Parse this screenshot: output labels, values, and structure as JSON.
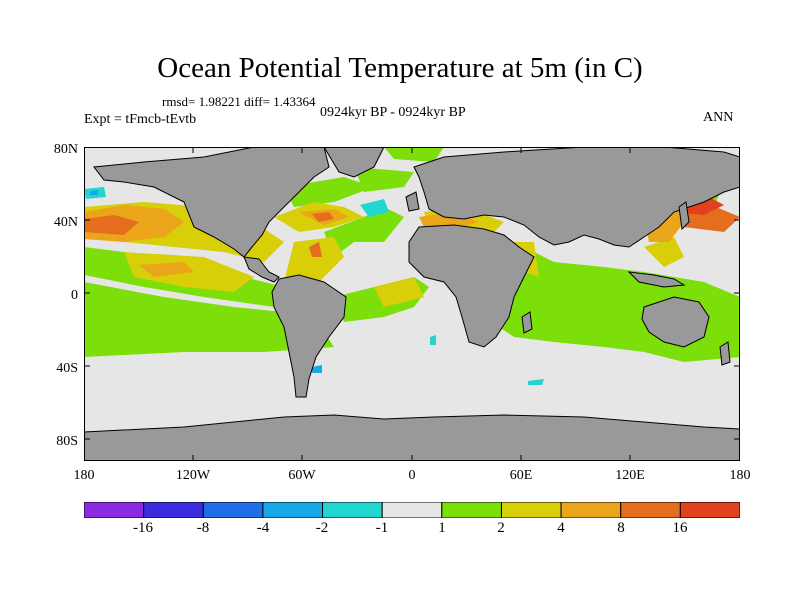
{
  "title": "Ocean Potential Temperature at 5m (in C)",
  "stats": "rmsd= 1.98221 diff= 1.43364",
  "experiment": "Expt = tFmcb-tEvtb",
  "period": "0924kyr BP - 0924kyr BP",
  "season": "ANN",
  "lat_labels": [
    "80N",
    "40N",
    "0",
    "40S",
    "80S"
  ],
  "lon_labels": [
    "180",
    "120W",
    "60W",
    "0",
    "60E",
    "120E",
    "180"
  ],
  "colorbar": {
    "labels": [
      "-16",
      "-8",
      "-4",
      "-2",
      "-1",
      "1",
      "2",
      "4",
      "8",
      "16"
    ],
    "colors": [
      "#8a2be2",
      "#3a2de0",
      "#1f6ee8",
      "#16a8e8",
      "#22d6d0",
      "#e6e6e6",
      "#7cdf0a",
      "#d8cf08",
      "#eba51a",
      "#e46e1e",
      "#e2411e"
    ]
  },
  "colors": {
    "land": "#999999",
    "ocean_neutral": "#e6e6e6",
    "coast": "#000000"
  }
}
